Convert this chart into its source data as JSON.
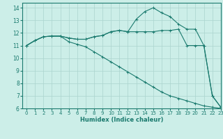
{
  "xlabel": "Humidex (Indice chaleur)",
  "background_color": "#cceee8",
  "grid_color": "#aad4ce",
  "line_color": "#1a7a6e",
  "xlim": [
    -0.5,
    23
  ],
  "ylim": [
    6,
    14.4
  ],
  "yticks": [
    6,
    7,
    8,
    9,
    10,
    11,
    12,
    13,
    14
  ],
  "xticks": [
    0,
    1,
    2,
    3,
    4,
    5,
    6,
    7,
    8,
    9,
    10,
    11,
    12,
    13,
    14,
    15,
    16,
    17,
    18,
    19,
    20,
    21,
    22,
    23
  ],
  "series": [
    {
      "x": [
        0,
        1,
        2,
        3,
        4,
        5,
        6,
        7,
        8,
        9,
        10,
        11,
        12,
        13,
        14,
        15,
        16,
        17,
        18,
        19,
        20,
        21,
        22,
        23
      ],
      "y": [
        11.0,
        11.4,
        11.7,
        11.75,
        11.75,
        11.6,
        11.5,
        11.5,
        11.7,
        11.8,
        12.1,
        12.2,
        12.1,
        13.1,
        13.7,
        14.0,
        13.6,
        13.3,
        12.7,
        12.3,
        12.3,
        11.0,
        7.0,
        6.1
      ]
    },
    {
      "x": [
        0,
        1,
        2,
        3,
        4,
        5,
        6,
        7,
        8,
        9,
        10,
        11,
        12,
        13,
        14,
        15,
        16,
        17,
        18,
        19,
        20,
        21,
        22,
        23
      ],
      "y": [
        11.0,
        11.4,
        11.7,
        11.75,
        11.75,
        11.6,
        11.5,
        11.5,
        11.7,
        11.8,
        12.1,
        12.2,
        12.1,
        12.1,
        12.1,
        12.1,
        12.2,
        12.2,
        12.3,
        11.0,
        11.0,
        11.0,
        7.0,
        6.1
      ]
    },
    {
      "x": [
        0,
        1,
        2,
        3,
        4,
        5,
        6,
        7,
        8,
        9,
        10,
        11,
        12,
        13,
        14,
        15,
        16,
        17,
        18,
        19,
        20,
        21,
        22,
        23
      ],
      "y": [
        11.0,
        11.4,
        11.7,
        11.75,
        11.75,
        11.3,
        11.1,
        10.9,
        10.5,
        10.1,
        9.7,
        9.3,
        8.9,
        8.5,
        8.1,
        7.7,
        7.3,
        7.0,
        6.8,
        6.6,
        6.4,
        6.2,
        6.1,
        6.0
      ]
    }
  ]
}
